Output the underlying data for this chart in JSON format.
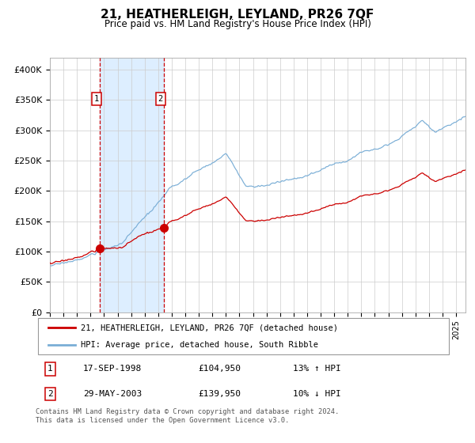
{
  "title": "21, HEATHERLEIGH, LEYLAND, PR26 7QF",
  "subtitle": "Price paid vs. HM Land Registry's House Price Index (HPI)",
  "legend_line1": "21, HEATHERLEIGH, LEYLAND, PR26 7QF (detached house)",
  "legend_line2": "HPI: Average price, detached house, South Ribble",
  "sale1_date": "17-SEP-1998",
  "sale1_price": 104950,
  "sale1_hpi": "13% ↑ HPI",
  "sale2_date": "29-MAY-2003",
  "sale2_price": 139950,
  "sale2_hpi": "10% ↓ HPI",
  "footer": "Contains HM Land Registry data © Crown copyright and database right 2024.\nThis data is licensed under the Open Government Licence v3.0.",
  "hpi_color": "#7aaed6",
  "price_color": "#cc0000",
  "highlight_color": "#ddeeff",
  "ylim": [
    0,
    420000
  ],
  "yticks": [
    0,
    50000,
    100000,
    150000,
    200000,
    250000,
    300000,
    350000,
    400000
  ],
  "ytick_labels": [
    "£0",
    "£50K",
    "£100K",
    "£150K",
    "£200K",
    "£250K",
    "£300K",
    "£350K",
    "£400K"
  ],
  "sale1_x": 1998.71,
  "sale2_x": 2003.41,
  "xmin": 1995.0,
  "xmax": 2025.7
}
